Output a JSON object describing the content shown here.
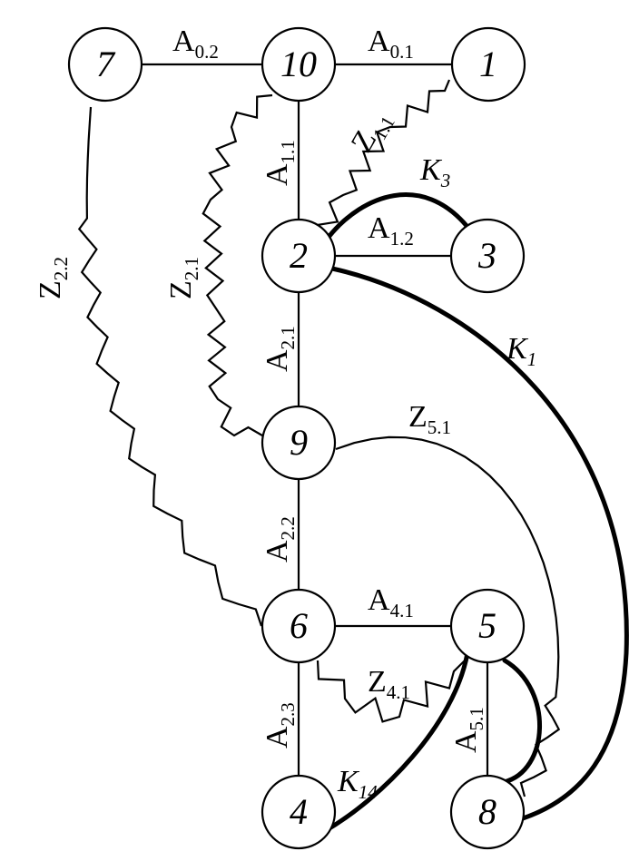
{
  "nodes": {
    "n7": "7",
    "n10": "10",
    "n1": "1",
    "n2": "2",
    "n3": "3",
    "n9": "9",
    "n6": "6",
    "n5": "5",
    "n4": "4",
    "n8": "8"
  },
  "edges": {
    "A02": {
      "main": "A",
      "sub": "0.2"
    },
    "A01": {
      "main": "A",
      "sub": "0.1"
    },
    "A11": {
      "main": "A",
      "sub": "1.1"
    },
    "A12": {
      "main": "A",
      "sub": "1.2"
    },
    "A21": {
      "main": "A",
      "sub": "2.1"
    },
    "A22": {
      "main": "A",
      "sub": "2.2"
    },
    "A23": {
      "main": "A",
      "sub": "2.3"
    },
    "A41": {
      "main": "A",
      "sub": "4.1"
    },
    "A51": {
      "main": "A",
      "sub": "5.1"
    },
    "Z11": {
      "main": "Z",
      "sub": "1.1"
    },
    "Z21": {
      "main": "Z",
      "sub": "2.1"
    },
    "Z22": {
      "main": "Z",
      "sub": "2.2"
    },
    "Z41": {
      "main": "Z",
      "sub": "4.1"
    },
    "Z51": {
      "main": "Z",
      "sub": "5.1"
    },
    "K1": {
      "main": "K",
      "sub": "1"
    },
    "K3": {
      "main": "K",
      "sub": "3"
    },
    "K14": {
      "main": "K",
      "sub": "14"
    }
  }
}
